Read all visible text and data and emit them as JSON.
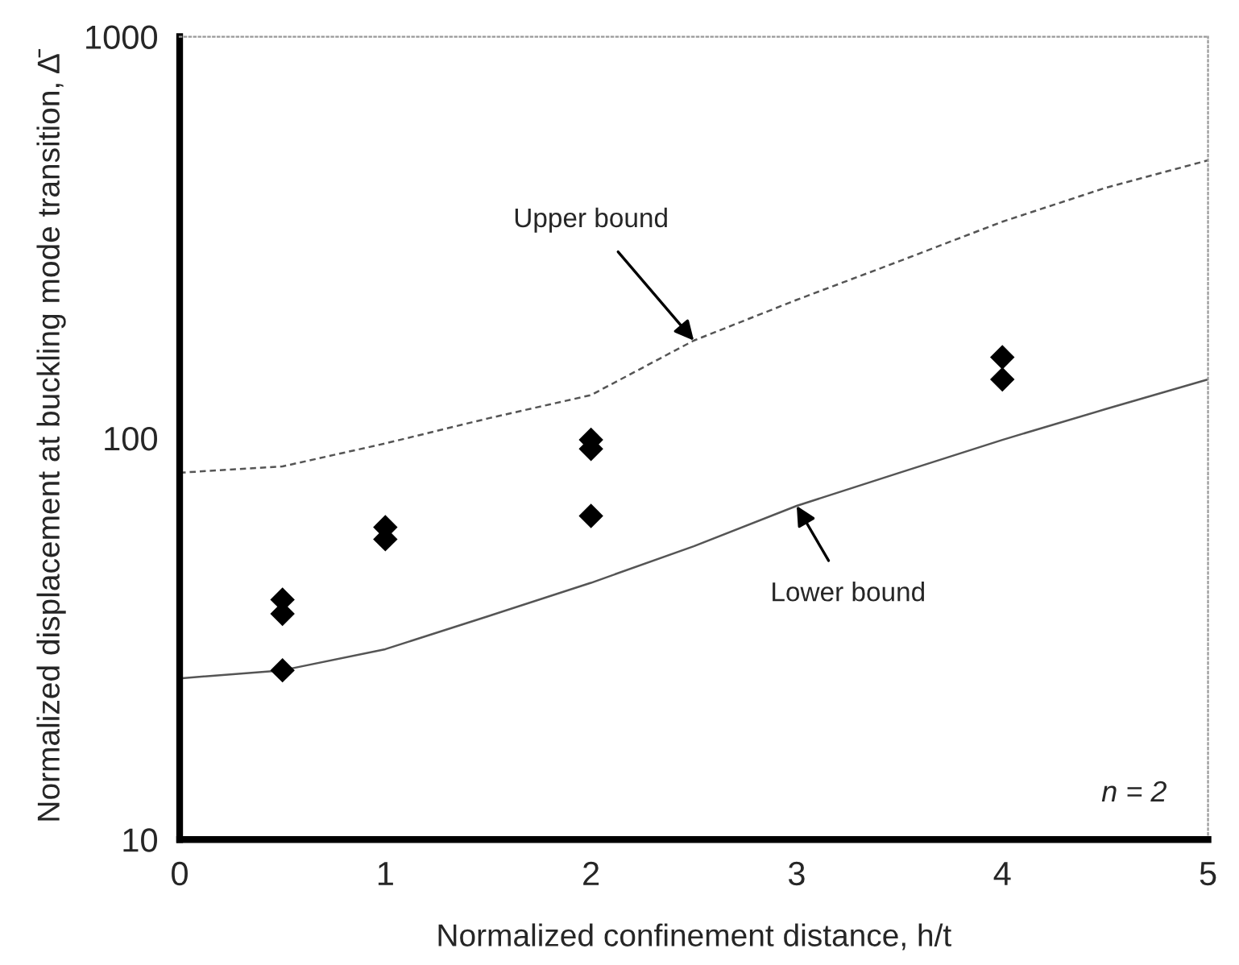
{
  "chart_data": {
    "type": "scatter",
    "xlabel": "Normalized confinement distance, h/t",
    "ylabel": "Normalized displacement at buckling mode transition, Δ̄",
    "log": "y",
    "xlim": [
      0,
      5
    ],
    "ylim": [
      10,
      1000
    ],
    "xticks": [
      0,
      1,
      2,
      3,
      4,
      5
    ],
    "yticks": [
      10,
      100,
      1000
    ],
    "grid": false,
    "legend": false,
    "series": [
      {
        "type": "scatter",
        "marker": "diamond",
        "color": "#000000",
        "x": [
          0.5,
          0.5,
          0.5,
          1,
          1,
          2,
          2,
          2,
          4,
          4
        ],
        "values": [
          39.6,
          36.5,
          26.4,
          60,
          56,
          99,
          94,
          64,
          159,
          140
        ]
      },
      {
        "type": "line",
        "line_style": "dashed",
        "marker": "none",
        "color": "#555555",
        "x": [
          0,
          0.5,
          1,
          1.5,
          2,
          2.5,
          3,
          3.5,
          4,
          4.5,
          5
        ],
        "values": [
          82,
          85,
          97,
          112,
          128,
          175,
          221,
          276,
          346,
          420,
          492
        ]
      },
      {
        "type": "line",
        "line_style": "solid",
        "marker": "none",
        "color": "#555555",
        "x": [
          0,
          0.5,
          1,
          1.5,
          2,
          2.5,
          3,
          3.5,
          4,
          4.5,
          5
        ],
        "values": [
          25.2,
          26.4,
          29.8,
          36,
          43.6,
          53.8,
          67.8,
          82,
          99,
          118,
          140
        ]
      }
    ],
    "annotations": [
      {
        "text": "Upper bound",
        "x": 2.5,
        "y": 175
      },
      {
        "text": "Lower bound",
        "x": 3,
        "y": 67.8
      },
      "n = 2"
    ]
  }
}
